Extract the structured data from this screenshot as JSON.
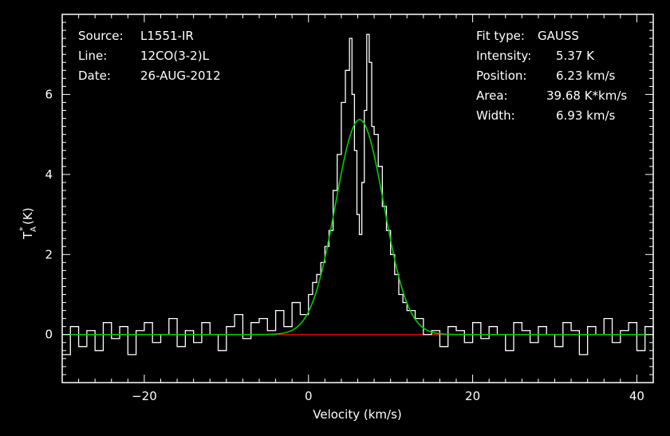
{
  "info_left": {
    "source_label": "Source:",
    "source_value": "L1551-IR",
    "line_label": "Line:",
    "line_value": "12CO(3-2)L",
    "date_label": "Date:",
    "date_value": "26-AUG-2012"
  },
  "info_right": {
    "fit_type_label": "Fit type:",
    "fit_type_value": "GAUSS",
    "intensity_label": "Intensity:",
    "intensity_value": "5.37 K",
    "position_label": "Position:",
    "position_value": "6.23 km/s",
    "area_label": "Area:",
    "area_value": "39.68 K*km/s",
    "width_label": "Width:",
    "width_value": "6.93 km/s"
  },
  "colors": {
    "background": "#000000",
    "axes": "#ffffff",
    "spectrum": "#ffffff",
    "fit": "#00cc00",
    "baseline": "#ff0000"
  },
  "chart_data": {
    "type": "line",
    "xlabel": "Velocity (km/s)",
    "ylabel": "T_A* (K)",
    "ylabel_main": "T",
    "ylabel_sub": "A",
    "ylabel_sup": "*",
    "ylabel_unit": " (K)",
    "xlim": [
      -30,
      42
    ],
    "ylim": [
      -1.2,
      8.0
    ],
    "xticks": [
      -20,
      0,
      20,
      40
    ],
    "yticks": [
      0,
      2,
      4,
      6
    ],
    "xtick_labels": [
      "−20",
      "0",
      "20",
      "40"
    ],
    "ytick_labels": [
      "0",
      "2",
      "4",
      "6"
    ],
    "grid": false,
    "fit": {
      "model": "gauss",
      "amplitude": 5.37,
      "center": 6.23,
      "fwhm": 6.93
    },
    "baseline": {
      "y": 0
    },
    "series": [
      {
        "x": [
          -30,
          -29,
          -28,
          -27,
          -26,
          -25,
          -24,
          -23,
          -22,
          -21,
          -20,
          -19,
          -18,
          -17,
          -16,
          -15,
          -14,
          -13,
          -12,
          -11,
          -10,
          -9,
          -8,
          -7,
          -6,
          -5,
          -4,
          -3,
          -2,
          -1,
          0,
          0.5,
          1,
          1.5,
          2,
          2.5,
          3,
          3.5,
          4,
          4.5,
          5,
          5.3,
          5.6,
          5.9,
          6.2,
          6.5,
          6.8,
          7.1,
          7.4,
          7.7,
          8,
          8.5,
          9,
          9.5,
          10,
          10.5,
          11,
          11.5,
          12,
          13,
          14,
          15,
          16,
          17,
          18,
          19,
          20,
          21,
          22,
          23,
          24,
          25,
          26,
          27,
          28,
          29,
          30,
          31,
          32,
          33,
          34,
          35,
          36,
          37,
          38,
          39,
          40,
          41,
          42
        ],
        "y": [
          -0.5,
          0.2,
          -0.3,
          0.1,
          -0.4,
          0.3,
          -0.1,
          0.2,
          -0.5,
          0.1,
          0.3,
          -0.2,
          0.0,
          0.4,
          -0.3,
          0.1,
          -0.2,
          0.3,
          0.0,
          -0.4,
          0.2,
          0.5,
          -0.1,
          0.3,
          0.4,
          0.1,
          0.6,
          0.2,
          0.8,
          0.5,
          1.0,
          1.3,
          1.5,
          1.8,
          2.2,
          2.6,
          3.6,
          4.5,
          5.8,
          6.6,
          7.4,
          6.0,
          4.6,
          3.0,
          2.5,
          3.8,
          5.6,
          7.5,
          6.8,
          5.2,
          5.0,
          4.2,
          3.2,
          2.6,
          2.0,
          1.5,
          1.0,
          0.8,
          0.6,
          0.4,
          0.0,
          0.1,
          -0.3,
          0.2,
          0.1,
          -0.2,
          0.3,
          -0.1,
          0.2,
          0.0,
          -0.4,
          0.3,
          0.1,
          -0.2,
          0.2,
          0.0,
          -0.3,
          0.3,
          0.1,
          -0.5,
          0.2,
          0.0,
          0.4,
          -0.2,
          0.1,
          0.3,
          -0.4,
          0.2,
          -0.1
        ]
      }
    ]
  }
}
